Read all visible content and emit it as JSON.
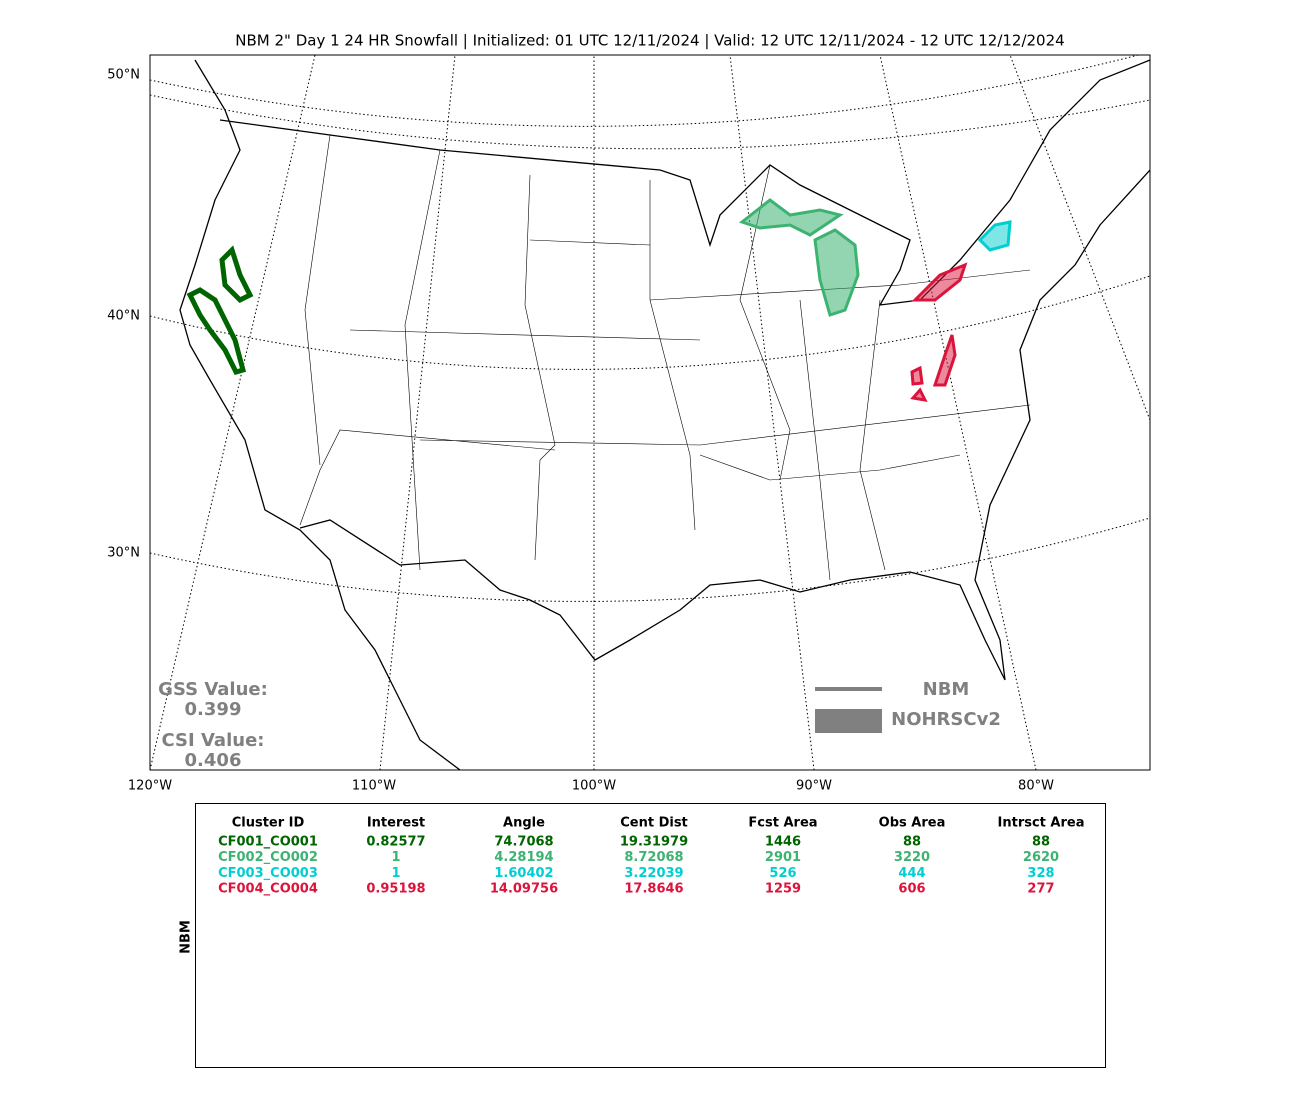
{
  "title": "NBM 2\" Day 1 24 HR Snowfall | Initialized: 01 UTC 12/11/2024 | Valid: 12 UTC 12/11/2024 - 12 UTC 12/12/2024",
  "map": {
    "lat_labels": [
      "50°N",
      "40°N",
      "30°N"
    ],
    "lon_labels": [
      "120°W",
      "110°W",
      "100°W",
      "90°W",
      "80°W"
    ],
    "stats": {
      "gss_label": "GSS Value:",
      "gss": "0.399",
      "csi_label": "CSI Value:",
      "csi": "0.406"
    },
    "legend": [
      "NBM",
      "NOHRSCv2"
    ]
  },
  "table": {
    "side_label": "NBM",
    "header": [
      "Cluster ID",
      "Interest",
      "Angle",
      "Cent Dist",
      "Fcst Area",
      "Obs Area",
      "Intrsct Area"
    ],
    "row_colors": [
      "#006400",
      "#3cb371",
      "#00ced1",
      "#dc143c"
    ],
    "rows": [
      [
        "CF001_CO001",
        "0.82577",
        "74.7068",
        "19.31979",
        "1446",
        "88",
        "88"
      ],
      [
        "CF002_CO002",
        "1",
        "4.28194",
        "8.72068",
        "2901",
        "3220",
        "2620"
      ],
      [
        "CF003_CO003",
        "1",
        "1.60402",
        "3.22039",
        "526",
        "444",
        "328"
      ],
      [
        "CF004_CO004",
        "0.95198",
        "14.09756",
        "17.8646",
        "1259",
        "606",
        "277"
      ]
    ]
  }
}
